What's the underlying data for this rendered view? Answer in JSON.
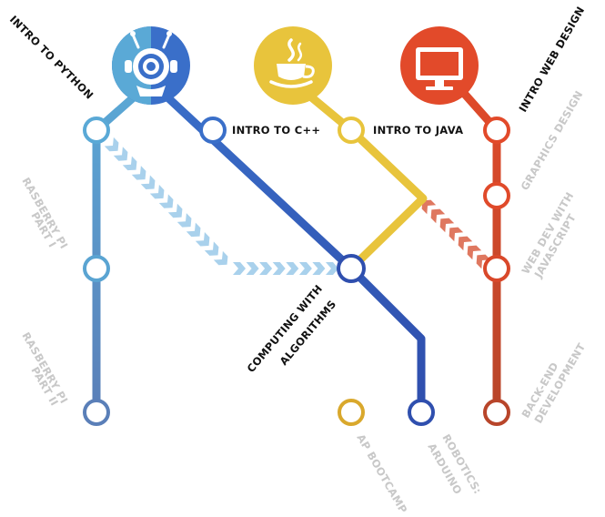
{
  "colors": {
    "python": "#5aa9d6",
    "python_end": "#5a7fb8",
    "cpp_blue": "#3a6fc9",
    "cpp_deep": "#2f4fae",
    "yellow": "#e8c43c",
    "yellow_dark": "#d9a82c",
    "red": "#e24a2a",
    "red_dark": "#b8452a",
    "arrow_blue": "#a9d1ec",
    "arrow_red": "#df7860",
    "muted_label": "#c8c8c8",
    "dark_label": "#111111"
  },
  "icons": {
    "python": "robot-icon",
    "cpp": "java-coffee-cup-icon",
    "web": "monitor-icon"
  },
  "labels": {
    "intro_python": "INTRO TO PYTHON",
    "intro_cpp": "INTRO TO C++",
    "intro_java": "INTRO TO JAVA",
    "intro_web": "INTRO WEB DESIGN",
    "rasberry_pi_1_line1": "RASBERRY PI",
    "rasberry_pi_1_line2": "PART I",
    "rasberry_pi_2_line1": "RASBERRY PI",
    "rasberry_pi_2_line2": "PART II",
    "computing_line1": "COMPUTING WITH",
    "computing_line2": "ALGORITHMS",
    "graphics_design": "GRAPHICS DESIGN",
    "webdev_line1": "WEB DEV WITH",
    "webdev_line2": "JAVASCRIPT",
    "backend_line1": "BACK-END",
    "backend_line2": "DEVELOPMENT",
    "ap_bootcamp": "AP BOOTCAMP",
    "robotics_line1": "ROBOTICS:",
    "robotics_line2": "ARDUINO"
  }
}
